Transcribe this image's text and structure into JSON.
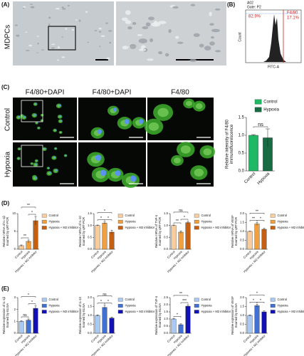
{
  "panel_labels": {
    "a": "(A)",
    "b": "(B)",
    "c": "(C)",
    "d": "(D)",
    "e": "(E)"
  },
  "micrograph_row_label": "MDPCs",
  "flow": {
    "sample": "A02",
    "gate": "Gate: P2",
    "negative_percent": "82.9%",
    "marker": "F4/80",
    "positive_percent": "17.1%",
    "y_label": "Count",
    "x_label": "FITC-A"
  },
  "immunofluorescence": {
    "headers": [
      "F4/80+DAPI",
      "F4/80+DAPI",
      "F4/80"
    ],
    "rows": [
      "Control",
      "Hypoxia"
    ]
  },
  "chart_data": [
    {
      "type": "bar",
      "categories": [
        "Control",
        "Hypoxia"
      ],
      "values": [
        1.0,
        0.93
      ],
      "errors": [
        0.02,
        0.25
      ],
      "colors": [
        "#1fb864",
        "#186b42"
      ],
      "ylim": [
        0,
        1.5
      ],
      "yticks": [
        {
          "value": 0,
          "label": "0.0"
        },
        {
          "value": 0.5,
          "label": "0.5"
        },
        {
          "value": 1,
          "label": "1.0"
        },
        {
          "value": 1.5,
          "label": "1.5"
        }
      ],
      "y_label": [
        "Relative intensity of F4/80",
        "immunofluorescence"
      ],
      "annotations": [
        "ns"
      ],
      "legend": "top"
    },
    {
      "type": "bar",
      "categories": [
        "Control",
        "Hypoxia",
        "Hypoxia + M2 inhibitor"
      ],
      "values": [
        1,
        2.2,
        8
      ],
      "errors": [
        0.2,
        0.4,
        1.2
      ],
      "colors": [
        "#f9cc9e",
        "#f0a040",
        "#c4600f"
      ],
      "ylim": [
        0,
        10
      ],
      "yticks": [
        0,
        5,
        10
      ],
      "y_label": [
        "Relative mRNA of IL-1β",
        "Examed by qRT-PCR"
      ],
      "annotations": [
        "**",
        "**",
        "*"
      ],
      "legend": "right"
    },
    {
      "type": "bar",
      "categories": [
        "Control",
        "Hypoxia",
        "Hypoxia + M2 inhibitor"
      ],
      "values": [
        1,
        1.1,
        0.72
      ],
      "errors": [
        0.02,
        0.05,
        0.08
      ],
      "colors": [
        "#f9cc9e",
        "#f0a040",
        "#c4600f"
      ],
      "ylim": [
        0,
        1.5
      ],
      "yticks": [
        {
          "value": 0,
          "label": "0.0"
        },
        {
          "value": 0.5,
          "label": "0.5"
        },
        {
          "value": 1,
          "label": "1.0"
        },
        {
          "value": 1.5,
          "label": "1.5"
        }
      ],
      "y_label": [
        "Relative mRNA of IL-10",
        "Examed by qRT-PCR"
      ],
      "annotations": [
        "*",
        "*",
        "*"
      ],
      "legend": "right"
    },
    {
      "type": "bar",
      "categories": [
        "Control",
        "Hypoxia",
        "Hypoxia + M2 inhibitor"
      ],
      "values": [
        1,
        0.72,
        1.12
      ],
      "errors": [
        0.02,
        0.05,
        0.05
      ],
      "colors": [
        "#f9cc9e",
        "#f0a040",
        "#c4600f"
      ],
      "ylim": [
        0,
        1.5
      ],
      "yticks": [
        {
          "value": 0,
          "label": "0.0"
        },
        {
          "value": 0.5,
          "label": "0.5"
        },
        {
          "value": 1,
          "label": "1.0"
        },
        {
          "value": 1.5,
          "label": "1.5"
        }
      ],
      "y_label": [
        "Relative mRNA of TNF-α",
        "Examed by qRT-PCR"
      ],
      "annotations": [
        "ns",
        "**",
        "*"
      ],
      "legend": "right"
    },
    {
      "type": "bar",
      "categories": [
        "Control",
        "Hypoxia",
        "Hypoxia + M2 inhibitor"
      ],
      "values": [
        1,
        1.42,
        1.12
      ],
      "errors": [
        0.02,
        0.08,
        0.05
      ],
      "colors": [
        "#f9cc9e",
        "#f0a040",
        "#c4600f"
      ],
      "ylim": [
        0,
        2
      ],
      "yticks": [
        {
          "value": 0,
          "label": "0.0"
        },
        {
          "value": 0.5,
          "label": "0.5"
        },
        {
          "value": 1,
          "label": "1.0"
        },
        {
          "value": 1.5,
          "label": "1.5"
        },
        {
          "value": 2,
          "label": "2.0"
        }
      ],
      "y_label": [
        "Relative mRNA of VEGF",
        "Examed by qRT-PCR"
      ],
      "annotations": [
        "**",
        "**",
        "*"
      ],
      "legend": "right"
    },
    {
      "type": "bar",
      "categories": [
        "Control",
        "Hypoxia",
        "Hypoxia + M2 inhibitor"
      ],
      "values": [
        1,
        1.1,
        2.1
      ],
      "errors": [
        0.05,
        0.1,
        0.2
      ],
      "colors": [
        "#a9c9f2",
        "#4271d4",
        "#1212b4"
      ],
      "ylim": [
        0,
        3
      ],
      "yticks": [
        0,
        1,
        2,
        3
      ],
      "y_label": [
        "Relative expression of IL-1β",
        "Examed by ELISA"
      ],
      "annotations": [
        "*",
        "ns",
        "*"
      ],
      "legend": "right"
    },
    {
      "type": "bar",
      "categories": [
        "Control",
        "Hypoxia",
        "Hypoxia + M2 inhibitor"
      ],
      "values": [
        1,
        1.45,
        0.85
      ],
      "errors": [
        0.03,
        0.12,
        0.06
      ],
      "colors": [
        "#a9c9f2",
        "#4271d4",
        "#1212b4"
      ],
      "ylim": [
        0,
        2
      ],
      "yticks": [
        {
          "value": 0,
          "label": "0.0"
        },
        {
          "value": 0.5,
          "label": "0.5"
        },
        {
          "value": 1,
          "label": "1.0"
        },
        {
          "value": 1.5,
          "label": "1.5"
        },
        {
          "value": 2,
          "label": "2.0"
        }
      ],
      "y_label": [
        "Relative expression of IL-10",
        "Examed by ELISA"
      ],
      "annotations": [
        "ns",
        "*",
        "*"
      ],
      "legend": "right"
    },
    {
      "type": "bar",
      "categories": [
        "Control",
        "Hypoxia",
        "Hypoxia + M2 inhibitor"
      ],
      "values": [
        1,
        0.6,
        1.9
      ],
      "errors": [
        0.03,
        0.06,
        0.1
      ],
      "colors": [
        "#a9c9f2",
        "#4271d4",
        "#1212b4"
      ],
      "ylim": [
        0,
        2.5
      ],
      "yticks": [
        {
          "value": 0,
          "label": "0.0"
        },
        {
          "value": 0.5,
          "label": "0.5"
        },
        {
          "value": 1,
          "label": "1.0"
        },
        {
          "value": 1.5,
          "label": "1.5"
        },
        {
          "value": 2,
          "label": "2.0"
        },
        {
          "value": 2.5,
          "label": "2.5"
        }
      ],
      "y_label": [
        "Relative expression of TNF-α",
        "Examed by ELISA"
      ],
      "annotations": [
        "**",
        "*",
        "***"
      ],
      "legend": "right"
    },
    {
      "type": "bar",
      "categories": [
        "Control",
        "Hypoxia",
        "Hypoxia + M2 inhibitor"
      ],
      "values": [
        1,
        1.55,
        1.2
      ],
      "errors": [
        0.03,
        0.08,
        0.05
      ],
      "colors": [
        "#a9c9f2",
        "#4271d4",
        "#1212b4"
      ],
      "ylim": [
        0,
        2
      ],
      "yticks": [
        {
          "value": 0,
          "label": "0.0"
        },
        {
          "value": 0.5,
          "label": "0.5"
        },
        {
          "value": 1,
          "label": "1.0"
        },
        {
          "value": 1.5,
          "label": "1.5"
        },
        {
          "value": 2,
          "label": "2.0"
        }
      ],
      "y_label": [
        "Relative expression of VEGF",
        "Examed by ELISA"
      ],
      "annotations": [
        "*",
        "*",
        "*"
      ],
      "legend": "right"
    }
  ]
}
